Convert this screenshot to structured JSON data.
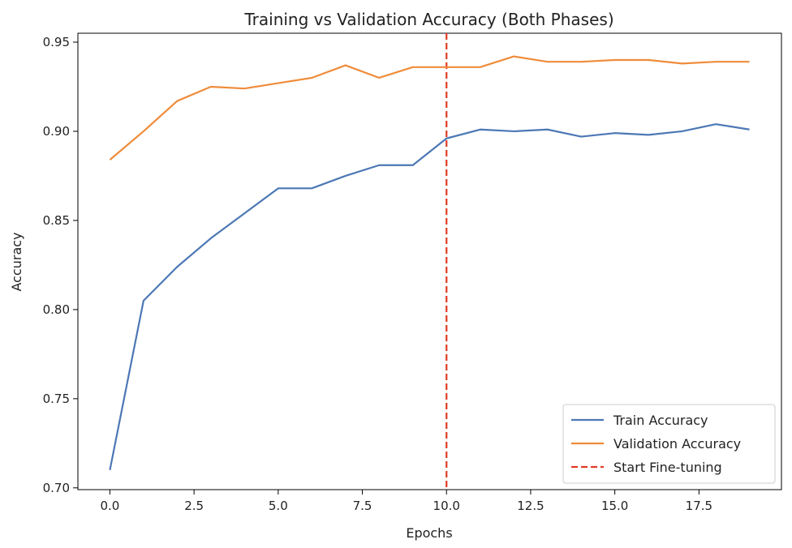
{
  "chart_data": {
    "type": "line",
    "title": "Training vs Validation Accuracy (Both Phases)",
    "xlabel": "Epochs",
    "ylabel": "Accuracy",
    "x": [
      0,
      1,
      2,
      3,
      4,
      5,
      6,
      7,
      8,
      9,
      10,
      11,
      12,
      13,
      14,
      15,
      16,
      17,
      18,
      19
    ],
    "xlim": [
      -0.95,
      19.95
    ],
    "ylim": [
      0.699,
      0.955
    ],
    "xticks": [
      0.0,
      2.5,
      5.0,
      7.5,
      10.0,
      12.5,
      15.0,
      17.5
    ],
    "xtick_labels": [
      "0.0",
      "2.5",
      "5.0",
      "7.5",
      "10.0",
      "12.5",
      "15.0",
      "17.5"
    ],
    "yticks": [
      0.7,
      0.75,
      0.8,
      0.85,
      0.9,
      0.95
    ],
    "ytick_labels": [
      "0.70",
      "0.75",
      "0.80",
      "0.85",
      "0.90",
      "0.95"
    ],
    "grid": false,
    "legend_position": "lower-right",
    "series": [
      {
        "name": "Train Accuracy",
        "color": "#4c78b5",
        "style": "solid",
        "values": [
          0.71,
          0.805,
          0.824,
          0.84,
          0.854,
          0.868,
          0.868,
          0.875,
          0.881,
          0.881,
          0.896,
          0.901,
          0.9,
          0.901,
          0.897,
          0.899,
          0.898,
          0.9,
          0.904,
          0.901
        ]
      },
      {
        "name": "Validation Accuracy",
        "color": "#ef8c3b",
        "style": "solid",
        "values": [
          0.884,
          0.9,
          0.917,
          0.925,
          0.924,
          0.927,
          0.93,
          0.937,
          0.93,
          0.936,
          0.936,
          0.936,
          0.942,
          0.939,
          0.939,
          0.94,
          0.94,
          0.938,
          0.939,
          0.939
        ]
      }
    ],
    "vlines": [
      {
        "name": "Start Fine-tuning",
        "x": 10,
        "color": "#e03b24",
        "style": "dashed"
      }
    ]
  }
}
